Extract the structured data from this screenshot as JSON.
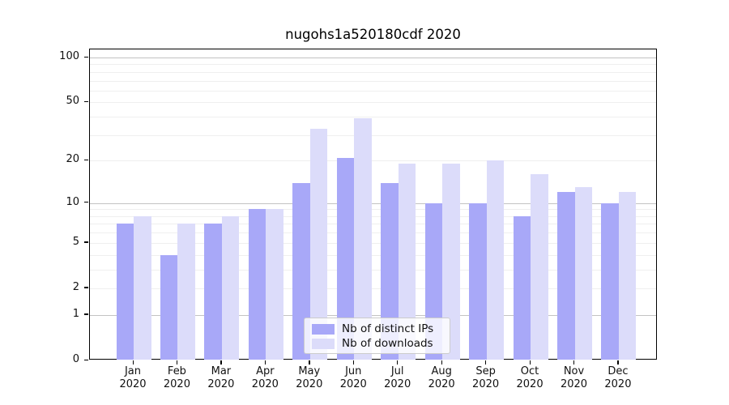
{
  "chart_data": {
    "type": "bar",
    "title": "nugohs1a520180cdf 2020",
    "categories": [
      "Jan",
      "Feb",
      "Mar",
      "Apr",
      "May",
      "Jun",
      "Jul",
      "Aug",
      "Sep",
      "Oct",
      "Nov",
      "Dec"
    ],
    "category_year": "2020",
    "series": [
      {
        "name": "Nb of distinct IPs",
        "color": "#a8a8f8",
        "values": [
          7,
          4,
          7,
          9,
          14,
          21,
          14,
          10,
          10,
          8,
          12,
          10
        ]
      },
      {
        "name": "Nb of downloads",
        "color": "#dcdcfa",
        "values": [
          8,
          7,
          8,
          9,
          33,
          39,
          19,
          19,
          20,
          16,
          13,
          12
        ]
      }
    ],
    "ylabel": "",
    "xlabel": "",
    "yscale": "log10(value+1)",
    "ylim": [
      0,
      100
    ],
    "yticks": [
      0,
      1,
      2,
      5,
      10,
      20,
      50,
      100
    ],
    "major_gridlines": [
      1,
      10,
      100
    ],
    "minor_gridlines": [
      2,
      3,
      4,
      5,
      6,
      7,
      8,
      9,
      20,
      30,
      40,
      50,
      60,
      70,
      80,
      90
    ],
    "grid": "on",
    "legend_position": "lower center",
    "axis_color": "#000000",
    "major_grid_color": "#c3c3c3",
    "minor_grid_color": "#efefef"
  }
}
